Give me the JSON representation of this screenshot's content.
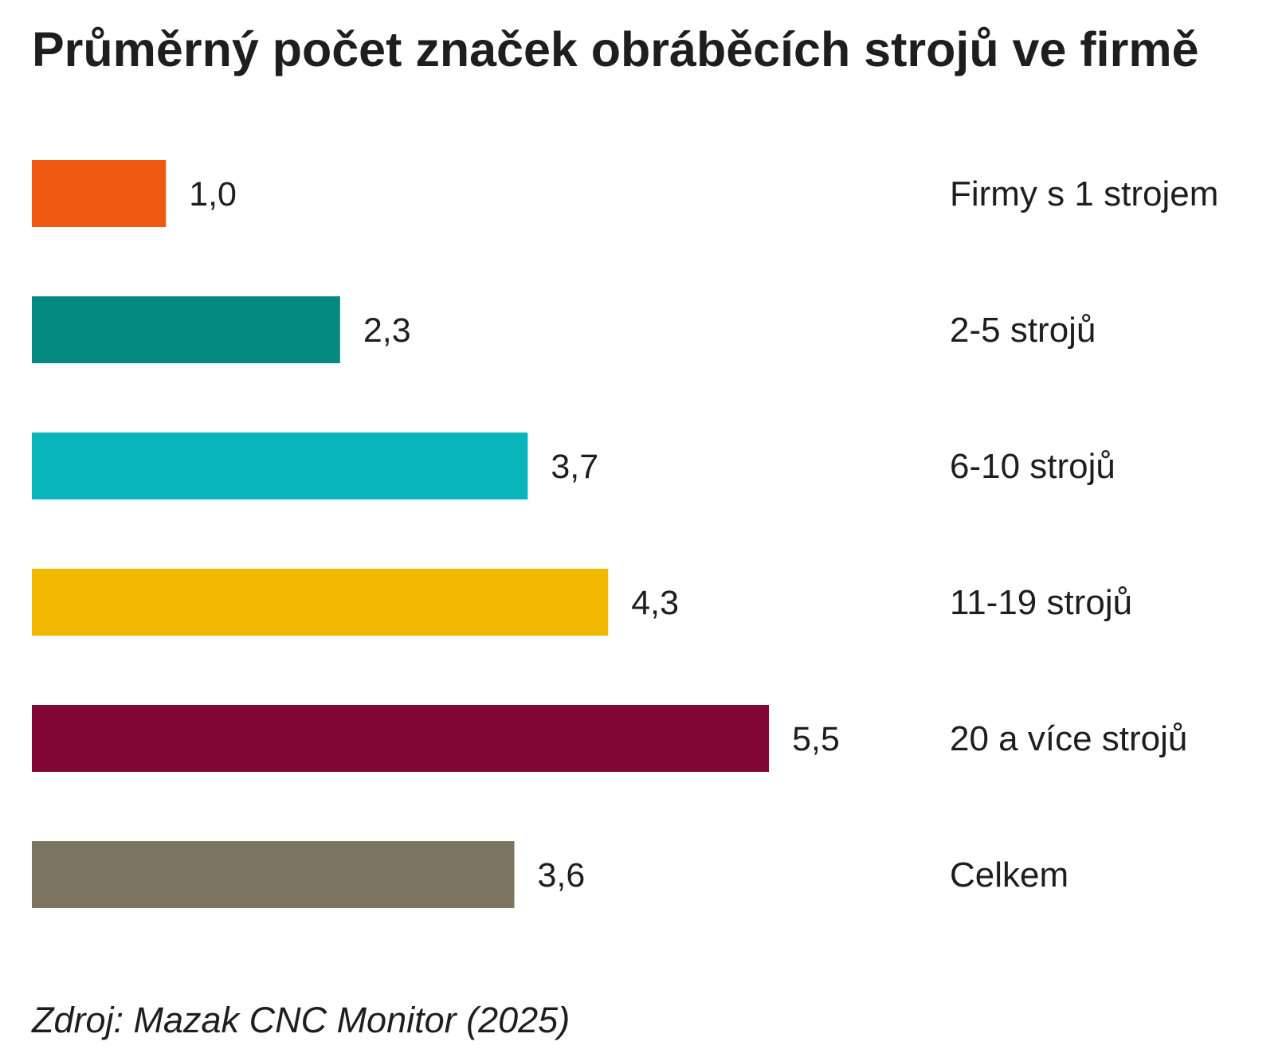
{
  "chart_data": {
    "type": "bar",
    "orientation": "horizontal",
    "title": "Průměrný počet značek obráběcích strojů ve firmě",
    "categories": [
      "Firmy s 1 strojem",
      "2-5 strojů",
      "6-10 strojů",
      "11-19 strojů",
      "20 a více strojů",
      "Celkem"
    ],
    "values": [
      1.0,
      2.3,
      3.7,
      4.3,
      5.5,
      3.6
    ],
    "value_labels": [
      "1,0",
      "2,3",
      "3,7",
      "4,3",
      "5,5",
      "3,6"
    ],
    "colors": [
      "#EF5810",
      "#058A80",
      "#07B5BA",
      "#F2B700",
      "#810833",
      "#7D7461"
    ],
    "xlabel": "",
    "ylabel": "",
    "xlim": [
      0,
      5.5
    ],
    "grid": false,
    "source": "Zdroj: Mazak CNC Monitor (2025)"
  }
}
